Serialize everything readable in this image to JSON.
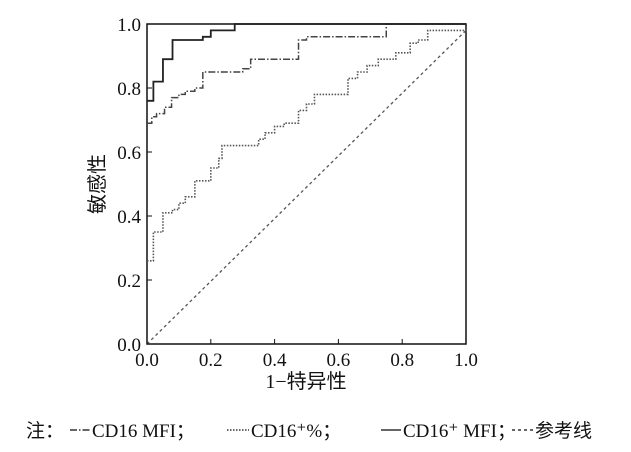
{
  "chart_data": {
    "type": "line",
    "title": "",
    "xlabel": "1−特异性",
    "ylabel": "敏感性",
    "xlim": [
      0,
      1
    ],
    "ylim": [
      0,
      1
    ],
    "xticks": [
      "0.0",
      "0.2",
      "0.4",
      "0.6",
      "0.8",
      "1.0"
    ],
    "yticks": [
      "0.0",
      "0.2",
      "0.4",
      "0.6",
      "0.8",
      "1.0"
    ],
    "grid": false,
    "series": [
      {
        "name": "CD16 MFI",
        "style": "dashdot",
        "color": "#444444",
        "x": [
          0,
          0.015,
          0.03,
          0.055,
          0.077,
          0.1,
          0.12,
          0.15,
          0.175,
          0.3,
          0.325,
          0.475,
          0.5,
          0.75,
          1.0
        ],
        "y": [
          0.69,
          0.71,
          0.72,
          0.74,
          0.77,
          0.78,
          0.79,
          0.8,
          0.85,
          0.86,
          0.89,
          0.95,
          0.96,
          1.0,
          1.0
        ]
      },
      {
        "name": "CD16⁺%",
        "style": "dotted",
        "color": "#555555",
        "x": [
          0,
          0.02,
          0.05,
          0.08,
          0.1,
          0.12,
          0.15,
          0.2,
          0.225,
          0.235,
          0.35,
          0.37,
          0.4,
          0.43,
          0.475,
          0.5,
          0.525,
          0.63,
          0.66,
          0.69,
          0.725,
          0.78,
          0.825,
          0.85,
          0.88,
          1.0
        ],
        "y": [
          0.26,
          0.35,
          0.41,
          0.42,
          0.44,
          0.46,
          0.51,
          0.55,
          0.58,
          0.62,
          0.64,
          0.66,
          0.68,
          0.69,
          0.73,
          0.75,
          0.78,
          0.83,
          0.85,
          0.87,
          0.89,
          0.91,
          0.94,
          0.95,
          0.98,
          0.99
        ]
      },
      {
        "name": "CD16⁺ MFI",
        "style": "solid",
        "color": "#222222",
        "x": [
          0,
          0.02,
          0.05,
          0.08,
          0.175,
          0.2,
          0.275,
          1.0
        ],
        "y": [
          0.76,
          0.82,
          0.89,
          0.95,
          0.96,
          0.98,
          1.0,
          1.0
        ]
      },
      {
        "name": "参考线",
        "style": "dashed",
        "color": "#555555",
        "x": [
          0,
          1.0
        ],
        "y": [
          0,
          0.98
        ]
      }
    ],
    "legend": {
      "position": "bottom",
      "prefix": "注：",
      "items": [
        "CD16 MFI；",
        "CD16⁺%；",
        "CD16⁺ MFI；",
        "参考线"
      ]
    }
  }
}
